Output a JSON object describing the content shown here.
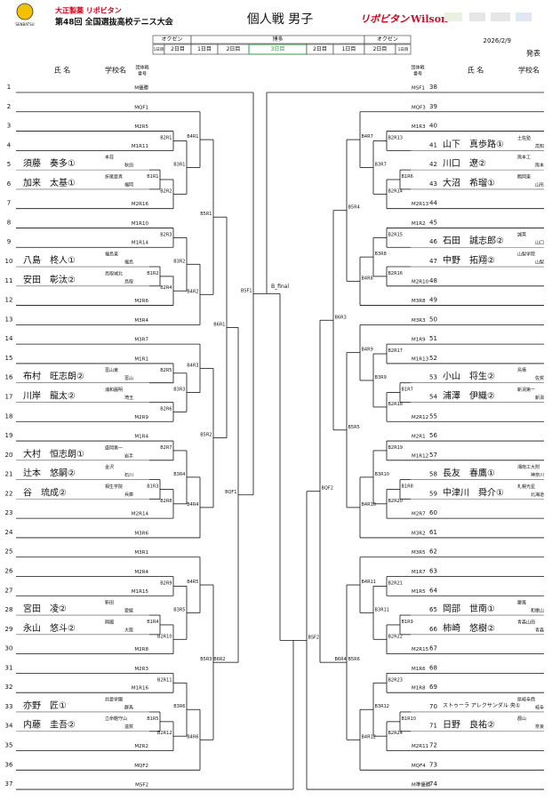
{
  "header": {
    "sponsor": "大正製薬 リポビタン",
    "tournament": "第48回 全国選抜高校テニス大会",
    "logo_text": "SENBATSU",
    "title": "個人戦 男子",
    "sponsors": [
      "リポビタン",
      "Wilson"
    ],
    "date": "2026/2/9",
    "status": "発表"
  },
  "schedule": {
    "venues": [
      {
        "label": "オクゼン",
        "days": [
          "1日目",
          "2日目"
        ]
      },
      {
        "label": "博多",
        "days": [
          "1日目",
          "2日目",
          "3日目",
          "2日目",
          "1日目"
        ]
      },
      {
        "label": "オクゼン",
        "days": [
          "2日目",
          "1日目"
        ]
      }
    ]
  },
  "columns": {
    "left": {
      "name": "氏 名",
      "school": "学校名",
      "team_no": [
        "団体戦",
        "番号"
      ]
    },
    "right": {
      "team_no": [
        "団体戦",
        "番号"
      ],
      "name": "氏 名",
      "school": "学校名"
    }
  },
  "left": {
    "rows": [
      {
        "no": 1,
        "slot": "M優勝"
      },
      {
        "no": 2,
        "slot": "MQF1"
      },
      {
        "no": 3,
        "slot": "M2R5"
      },
      {
        "no": 4,
        "slot": "M1R11"
      },
      {
        "no": 5,
        "name": "須藤　奏多①",
        "school": "本荘",
        "pref": "秋田"
      },
      {
        "no": 6,
        "name": "加来　太基①",
        "school": "折尾愛真",
        "pref": "福岡"
      },
      {
        "no": 7,
        "slot": "M2R16"
      },
      {
        "no": 8,
        "slot": "M1R10"
      },
      {
        "no": 9,
        "slot": "M1R14"
      },
      {
        "no": 10,
        "name": "八島　柊人①",
        "school": "福島東",
        "pref": "福島"
      },
      {
        "no": 11,
        "name": "安田　彰汰②",
        "school": "鳥取城北",
        "pref": "鳥取"
      },
      {
        "no": 12,
        "slot": "M2R6"
      },
      {
        "no": 13,
        "slot": "M3R4"
      },
      {
        "no": 14,
        "slot": "M3R7"
      },
      {
        "no": 15,
        "slot": "M1R1"
      },
      {
        "no": 16,
        "name": "布村　旺志朗②",
        "school": "富山東",
        "pref": "富山"
      },
      {
        "no": 17,
        "name": "川岸　龍太②",
        "school": "浦和麗明",
        "pref": "埼玉"
      },
      {
        "no": 18,
        "slot": "M2R9"
      },
      {
        "no": 19,
        "slot": "M1R4"
      },
      {
        "no": 20,
        "name": "大村　恒志朗①",
        "school": "盛岡第一",
        "pref": "岩手"
      },
      {
        "no": 21,
        "name": "辻本　悠嗣②",
        "school": "金沢",
        "pref": "石川"
      },
      {
        "no": 22,
        "name": "谷　琉成②",
        "school": "相生学院",
        "pref": "兵庫"
      },
      {
        "no": 23,
        "slot": "M2R14"
      },
      {
        "no": 24,
        "slot": "M3R6"
      },
      {
        "no": 25,
        "slot": "M3R1"
      },
      {
        "no": 26,
        "slot": "M2R4"
      },
      {
        "no": 27,
        "slot": "M1R15"
      },
      {
        "no": 28,
        "name": "宮田　凌②",
        "school": "新田",
        "pref": "愛媛"
      },
      {
        "no": 29,
        "name": "永山　悠斗②",
        "school": "興國",
        "pref": "大阪"
      },
      {
        "no": 30,
        "slot": "M2R8"
      },
      {
        "no": 31,
        "slot": "M2R3"
      },
      {
        "no": 32,
        "slot": "M1R16"
      },
      {
        "no": 33,
        "name": "亦野　匠①",
        "school": "共愛学園",
        "pref": "群馬"
      },
      {
        "no": 34,
        "name": "内藤　圭吾②",
        "school": "立命館守山",
        "pref": "滋賀"
      },
      {
        "no": 35,
        "slot": "M2R2"
      },
      {
        "no": 36,
        "slot": "MQF2"
      },
      {
        "no": 37,
        "slot": "MSF2"
      }
    ],
    "nodes": [
      "B1R1",
      "B2R1",
      "B2R2",
      "B3R1",
      "B4R1",
      "B1R2",
      "B2R3",
      "B2R4",
      "B3R2",
      "B4R2",
      "B5R1",
      "B2R5",
      "B2R6",
      "B3R3",
      "B4R3",
      "B2R7",
      "B1R3",
      "B2R8",
      "B3R4",
      "B4R4",
      "B5R2",
      "B6R1",
      "B2R9",
      "B1R4",
      "B2R10",
      "B3R5",
      "B4R5",
      "B2R11",
      "B1R5",
      "B2R12",
      "B3R6",
      "B4R6",
      "B5R3",
      "B6R2",
      "BQF1",
      "BSF1"
    ]
  },
  "right": {
    "rows": [
      {
        "no": 38,
        "slot": "MSF1"
      },
      {
        "no": 39,
        "slot": "MQF3"
      },
      {
        "no": 40,
        "slot": "M1R3"
      },
      {
        "no": 41,
        "name": "山下　真歩路①",
        "school": "土佐塾",
        "pref": "高知"
      },
      {
        "no": 42,
        "name": "川口　遼②",
        "school": "熊本工",
        "pref": "熊本"
      },
      {
        "no": 43,
        "name": "大沼　希瑠①",
        "school": "鶴岡東",
        "pref": "山形"
      },
      {
        "no": 44,
        "slot": "M2R13"
      },
      {
        "no": 45,
        "slot": "M1R2"
      },
      {
        "no": 46,
        "name": "石田　誠志郎②",
        "school": "誠英",
        "pref": "山口"
      },
      {
        "no": 47,
        "name": "中野　拓翔②",
        "school": "山梨学院",
        "pref": "山梨"
      },
      {
        "no": 48,
        "slot": "M2R10"
      },
      {
        "no": 49,
        "slot": "M3R8"
      },
      {
        "no": 50,
        "slot": "M3R3"
      },
      {
        "no": 51,
        "slot": "M1R9"
      },
      {
        "no": 52,
        "slot": "M1R13"
      },
      {
        "no": 53,
        "name": "小山　将生②",
        "school": "鳥栖",
        "pref": "佐賀"
      },
      {
        "no": 54,
        "name": "浦澤　伊織②",
        "school": "新潟第一",
        "pref": "新潟"
      },
      {
        "no": 55,
        "slot": "M2R12"
      },
      {
        "no": 56,
        "slot": "M2R1"
      },
      {
        "no": 57,
        "slot": "M1R12"
      },
      {
        "no": 58,
        "name": "長友　春鷹①",
        "school": "湘南工大附",
        "pref": "神奈川"
      },
      {
        "no": 59,
        "name": "中津川　舜介①",
        "school": "札幌光星",
        "pref": "北海道"
      },
      {
        "no": 60,
        "slot": "M2R7"
      },
      {
        "no": 61,
        "slot": "M3R2"
      },
      {
        "no": 62,
        "slot": "M3R5"
      },
      {
        "no": 63,
        "slot": "M1R7"
      },
      {
        "no": 64,
        "slot": "M1R5"
      },
      {
        "no": 65,
        "name": "岡部　世南①",
        "school": "慶風",
        "pref": "和歌山"
      },
      {
        "no": 66,
        "name": "柿崎　悠樹②",
        "school": "青森山田",
        "pref": "青森"
      },
      {
        "no": 67,
        "slot": "M2R15"
      },
      {
        "no": 68,
        "slot": "M1R6"
      },
      {
        "no": 69,
        "slot": "M1R8"
      },
      {
        "no": 70,
        "name": "ストゥーラ アレクサンダル 央①",
        "school": "県岐阜商",
        "pref": "岐阜"
      },
      {
        "no": 71,
        "name": "日野　良祐②",
        "school": "郡山",
        "pref": "奈良"
      },
      {
        "no": 72,
        "slot": "M2R11"
      },
      {
        "no": 73,
        "slot": "MQF4"
      },
      {
        "no": 74,
        "slot": "M準優勝"
      }
    ],
    "nodes": [
      "B2R13",
      "B1R6",
      "B2R14",
      "B3R7",
      "B4R7",
      "B2R15",
      "B2R16",
      "B3R8",
      "B4R8",
      "B5R4",
      "B2R17",
      "B1R7",
      "B2R18",
      "B3R9",
      "B4R9",
      "B2R19",
      "B1R8",
      "B2R20",
      "B3R10",
      "B4R10",
      "B5R5",
      "B6R3",
      "B2R21",
      "B1R9",
      "B2R22",
      "B3R11",
      "B4R11",
      "B2R23",
      "B1R10",
      "B2R24",
      "B3R12",
      "B4R12",
      "B5R6",
      "B6R4",
      "BQF2",
      "BSF2"
    ]
  },
  "final": "B_final"
}
